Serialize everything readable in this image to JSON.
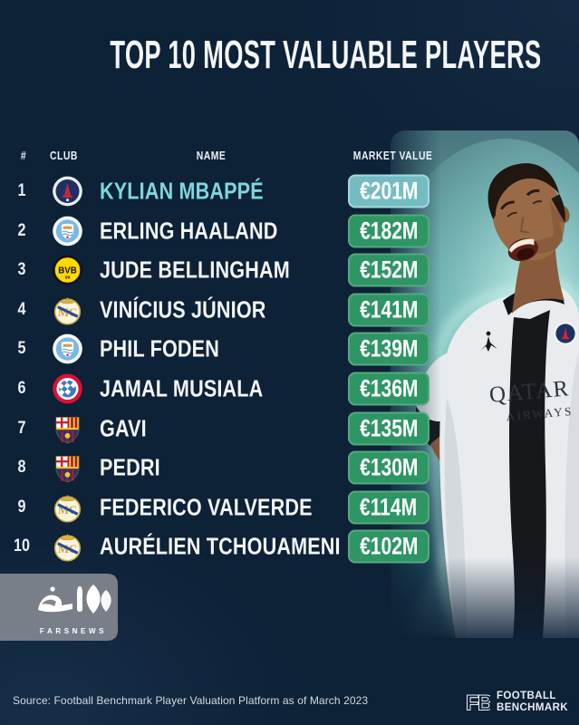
{
  "title": "TOP 10 MOST VALUABLE PLAYERS",
  "table": {
    "headers": {
      "rank": "#",
      "club": "CLUB",
      "name": "NAME",
      "value": "MARKET VALUE"
    },
    "players": [
      {
        "rank": "1",
        "club": "psg",
        "club_icon": "psg-crest-icon",
        "name": "KYLIAN MBAPPÉ",
        "value": "€201M",
        "highlight": true
      },
      {
        "rank": "2",
        "club": "man-city",
        "club_icon": "man-city-crest-icon",
        "name": "ERLING HAALAND",
        "value": "€182M"
      },
      {
        "rank": "3",
        "club": "dortmund",
        "club_icon": "dortmund-crest-icon",
        "name": "JUDE BELLINGHAM",
        "value": "€152M"
      },
      {
        "rank": "4",
        "club": "real-madrid",
        "club_icon": "real-madrid-crest-icon",
        "name": "VINÍCIUS JÚNIOR",
        "value": "€141M"
      },
      {
        "rank": "5",
        "club": "man-city",
        "club_icon": "man-city-crest-icon",
        "name": "PHIL FODEN",
        "value": "€139M"
      },
      {
        "rank": "6",
        "club": "bayern",
        "club_icon": "bayern-crest-icon",
        "name": "JAMAL MUSIALA",
        "value": "€136M"
      },
      {
        "rank": "7",
        "club": "barcelona",
        "club_icon": "barcelona-crest-icon",
        "name": "GAVI",
        "value": "€135M"
      },
      {
        "rank": "8",
        "club": "barcelona",
        "club_icon": "barcelona-crest-icon",
        "name": "PEDRI",
        "value": "€130M"
      },
      {
        "rank": "9",
        "club": "real-madrid",
        "club_icon": "real-madrid-crest-icon",
        "name": "FEDERICO VALVERDE",
        "value": "€114M"
      },
      {
        "rank": "10",
        "club": "real-madrid",
        "club_icon": "real-madrid-crest-icon",
        "name": "AURÉLIEN TCHOUAMENI",
        "value": "€102M"
      }
    ]
  },
  "chart_data": {
    "type": "table",
    "title": "TOP 10 MOST VALUABLE PLAYERS",
    "columns": [
      "#",
      "CLUB",
      "NAME",
      "MARKET VALUE"
    ],
    "rows": [
      [
        1,
        "Paris Saint-Germain",
        "Kylian Mbappé",
        "€201M"
      ],
      [
        2,
        "Manchester City",
        "Erling Haaland",
        "€182M"
      ],
      [
        3,
        "Borussia Dortmund",
        "Jude Bellingham",
        "€152M"
      ],
      [
        4,
        "Real Madrid",
        "Vinícius Júnior",
        "€141M"
      ],
      [
        5,
        "Manchester City",
        "Phil Foden",
        "€139M"
      ],
      [
        6,
        "Bayern Munich",
        "Jamal Musiala",
        "€136M"
      ],
      [
        7,
        "FC Barcelona",
        "Gavi",
        "€135M"
      ],
      [
        8,
        "FC Barcelona",
        "Pedri",
        "€130M"
      ],
      [
        9,
        "Real Madrid",
        "Federico Valverde",
        "€114M"
      ],
      [
        10,
        "Real Madrid",
        "Aurélien Tchouameni",
        "€102M"
      ]
    ],
    "values_eur_m": [
      201,
      182,
      152,
      141,
      139,
      136,
      135,
      130,
      114,
      102
    ]
  },
  "photo": {
    "player": "Kylian Mbappé",
    "jersey_line1": "QATAR",
    "jersey_line2": "AIRWAYS"
  },
  "watermark": {
    "wordmark": "فارس",
    "latin": "FARSNEWS"
  },
  "footer": {
    "source": "Source: Football Benchmark Player Valuation Platform as of March 2023",
    "brand_initials": "FB",
    "brand_line1": "FOOTBALL",
    "brand_line2": "BENCHMARK"
  },
  "colors": {
    "bg": "#0d2137",
    "teal-box": "#74bcc2",
    "teal-border": "#a5d8da",
    "teal-text": "#7ed7db",
    "green-box": "#2e9565",
    "green-border": "#55a97e"
  }
}
